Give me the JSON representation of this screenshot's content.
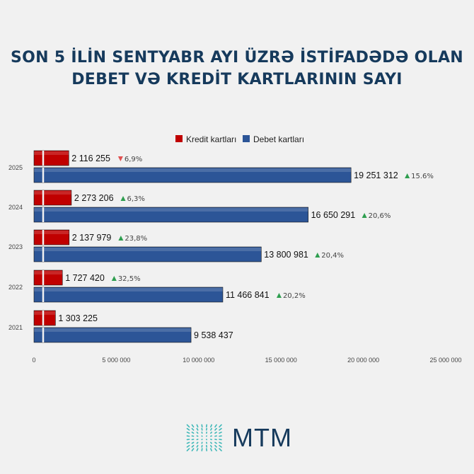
{
  "chart_data": {
    "type": "bar",
    "orientation": "horizontal",
    "title": "SON 5 İLİN SENTYABR AYI ÜZRƏ İSTİFADƏDƏ OLAN DEBET VƏ KREDİT KARTLARININ SAYI",
    "categories": [
      "2025",
      "2024",
      "2023",
      "2022",
      "2021"
    ],
    "series": [
      {
        "name": "Kredit kartları",
        "color": "#c00000",
        "values": [
          2116255,
          2273206,
          2137979,
          1727420,
          1303225
        ],
        "labels": [
          "2 116 255",
          "2 273 206",
          "2 137 979",
          "1 727 420",
          "1 303 225"
        ],
        "changes": [
          {
            "dir": "down",
            "text": "6,9%"
          },
          {
            "dir": "up",
            "text": "6,3%"
          },
          {
            "dir": "up",
            "text": "23,8%"
          },
          {
            "dir": "up",
            "text": "32,5%"
          },
          null
        ]
      },
      {
        "name": "Debet kartları",
        "color": "#2c5597",
        "values": [
          19251312,
          16650291,
          13800981,
          11466841,
          9538437
        ],
        "labels": [
          "19 251 312",
          "16 650 291",
          "13 800 981",
          "11 466 841",
          "9 538 437"
        ],
        "changes": [
          {
            "dir": "up",
            "text": "15.6%"
          },
          {
            "dir": "up",
            "text": "20,6%"
          },
          {
            "dir": "up",
            "text": "20,4%"
          },
          {
            "dir": "up",
            "text": "20,2%"
          },
          null
        ]
      }
    ],
    "xlim": [
      0,
      25000000
    ],
    "xticks": [
      0,
      5000000,
      10000000,
      15000000,
      20000000,
      25000000
    ],
    "xtick_labels": [
      "0",
      "5 000 000",
      "10 000 000",
      "15 000 000",
      "20 000 000",
      "25 000 000"
    ],
    "legend_position": "top-center",
    "grid": false,
    "up_color": "#2e9e4f",
    "down_color": "#e05050"
  },
  "logo": {
    "text": "MTM",
    "color": "#163a5c",
    "mark_color": "#3fb8b8"
  }
}
